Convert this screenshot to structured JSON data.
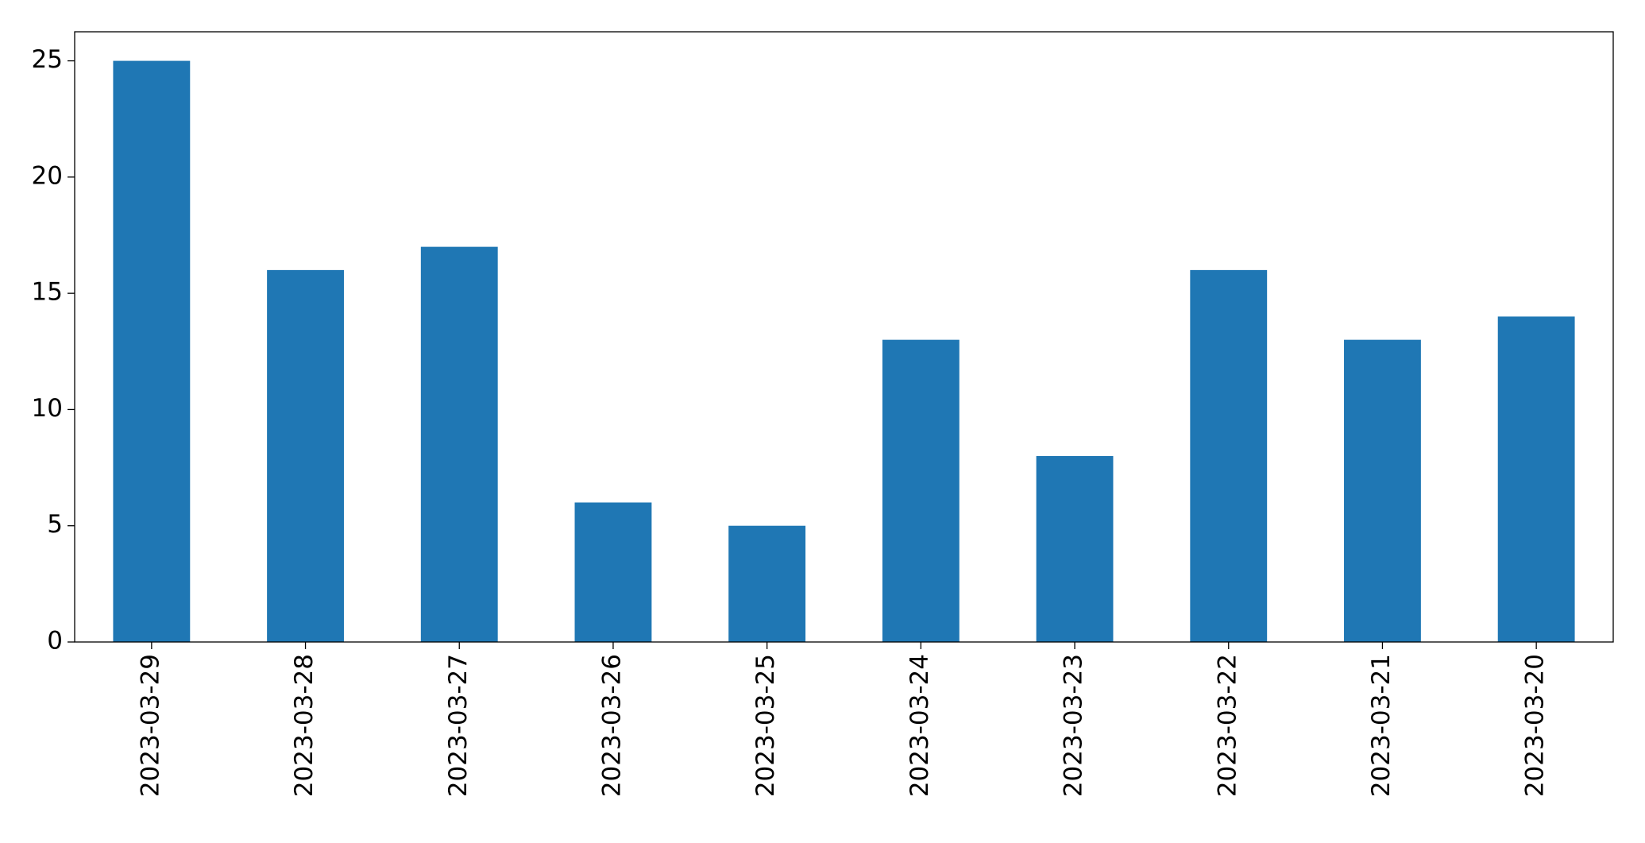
{
  "chart_data": {
    "type": "bar",
    "categories": [
      "2023-03-29",
      "2023-03-28",
      "2023-03-27",
      "2023-03-26",
      "2023-03-25",
      "2023-03-24",
      "2023-03-23",
      "2023-03-22",
      "2023-03-21",
      "2023-03-20"
    ],
    "values": [
      25,
      16,
      17,
      6,
      5,
      13,
      8,
      16,
      13,
      14
    ],
    "color": "#1f77b4",
    "ylim": [
      0,
      26.25
    ],
    "yticks": [
      0,
      5,
      10,
      15,
      20,
      25
    ],
    "grid": false
  }
}
